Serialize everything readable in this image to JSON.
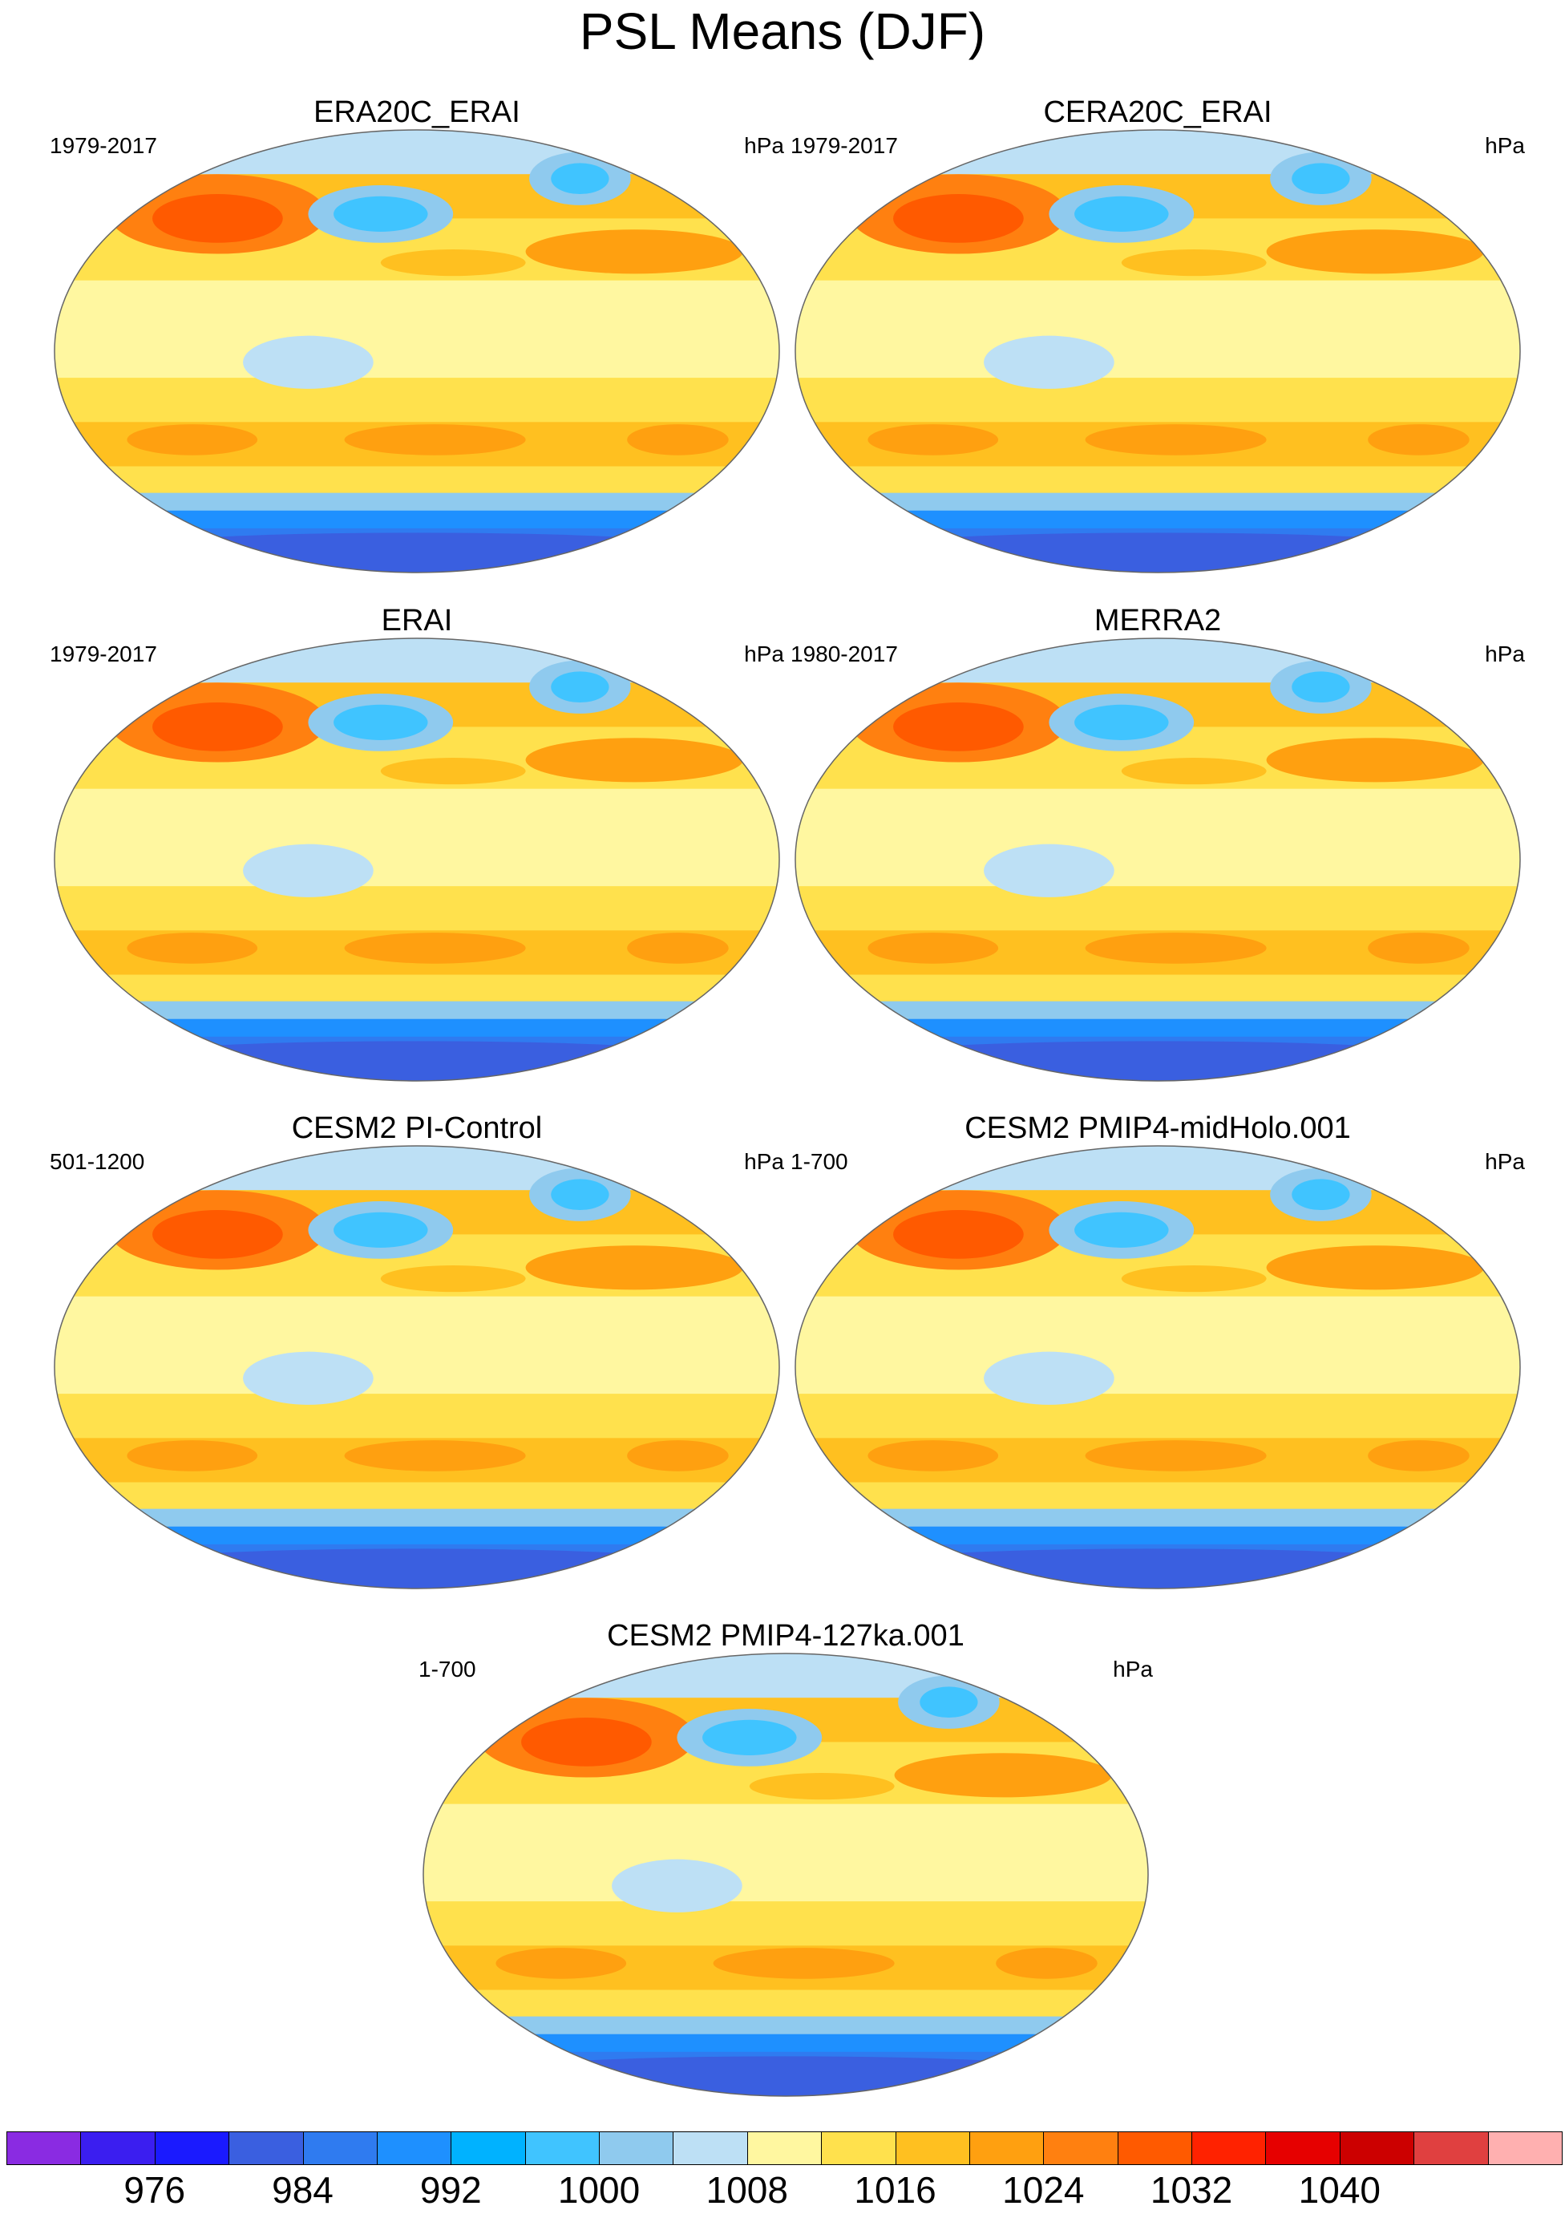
{
  "title": "PSL Means (DJF)",
  "panels": [
    {
      "name": "ERA20C_ERAI",
      "years": "1979-2017",
      "units": "hPa"
    },
    {
      "name": "CERA20C_ERAI",
      "years": "1979-2017",
      "units": "hPa"
    },
    {
      "name": "ERAI",
      "years": "1979-2017",
      "units": "hPa"
    },
    {
      "name": "MERRA2",
      "years": "1980-2017",
      "units": "hPa"
    },
    {
      "name": "CESM2 PI-Control",
      "years": "501-1200",
      "units": "hPa"
    },
    {
      "name": "CESM2 PMIP4-midHolo.001",
      "years": "1-700",
      "units": "hPa"
    },
    {
      "name": "CESM2 PMIP4-127ka.001",
      "years": "1-700",
      "units": "hPa"
    }
  ],
  "colorbar": {
    "colors": [
      "#8a2be2",
      "#3b1ef0",
      "#1a1aff",
      "#3a5fe0",
      "#2f7bf0",
      "#1e90ff",
      "#00b2ff",
      "#40c4ff",
      "#8fcaee",
      "#bde0f5",
      "#fff7a0",
      "#ffe14d",
      "#ffc020",
      "#ffa010",
      "#ff8010",
      "#ff5a00",
      "#ff2200",
      "#e60000",
      "#cc0000",
      "#e04040",
      "#ffb0b0"
    ],
    "tick_labels": [
      "976",
      "984",
      "992",
      "1000",
      "1008",
      "1016",
      "1024",
      "1032",
      "1040"
    ],
    "tick_positions": [
      2,
      4,
      6,
      8,
      10,
      12,
      14,
      16,
      18
    ]
  }
}
